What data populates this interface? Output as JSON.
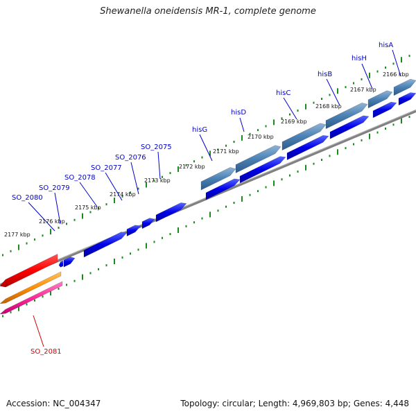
{
  "title": "Shewanella oneidensis MR-1, complete genome",
  "footer": {
    "accession": "Accession: NC_004347",
    "summary": "Topology: circular; Length: 4,969,803 bp; Genes: 4,448"
  },
  "colors": {
    "forward_gene": "#0000e8",
    "operon_gene": "#4a80b4",
    "reverse_gene_red": "#ff0000",
    "reverse_gene_orange": "#ff9000",
    "reverse_gene_pink": "#ff2a9a",
    "backbone": "#808080",
    "ticks": "#1a8a1a",
    "label_blue": "#0000cc",
    "label_red": "#cc0000"
  },
  "kbp_ticks": [
    "2166 kbp",
    "2167 kbp",
    "2168 kbp",
    "2169 kbp",
    "2170 kbp",
    "2171 kbp",
    "2172 kbp",
    "2173 kbp",
    "2174 kbp",
    "2175 kbp",
    "2176 kbp",
    "2177 kbp"
  ],
  "gene_labels": [
    "hisA",
    "hisH",
    "hisB",
    "hisC",
    "hisD",
    "hisG",
    "SO_2075",
    "SO_2076",
    "SO_2077",
    "SO_2078",
    "SO_2079",
    "SO_2080",
    "SO_2081"
  ]
}
